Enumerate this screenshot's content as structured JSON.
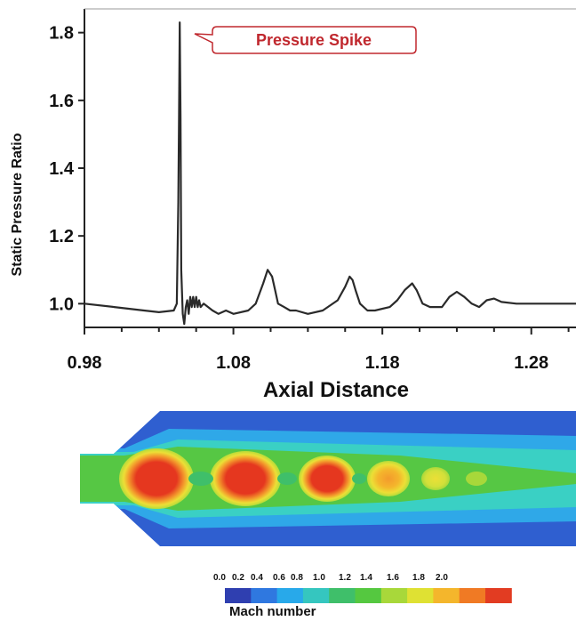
{
  "chart_data": {
    "type": "line",
    "xlabel": "Axial Distance",
    "ylabel": "Static Pressure Ratio",
    "xlim": [
      0.98,
      1.31
    ],
    "ylim": [
      0.93,
      1.87
    ],
    "x_ticks": [
      0.98,
      1.08,
      1.18,
      1.28
    ],
    "y_ticks": [
      1.0,
      1.2,
      1.4,
      1.6,
      1.8
    ],
    "x_tick_labels": [
      "0.98",
      "1.08",
      "1.18",
      "1.28"
    ],
    "y_tick_labels": [
      "1.0",
      "1.2",
      "1.4",
      "1.6",
      "1.8"
    ],
    "grid": false,
    "annotation": {
      "text": "Pressure Spike",
      "x": 1.044,
      "y": 1.83
    },
    "series": [
      {
        "x": [
          0.98,
          1.0,
          1.02,
          1.03,
          1.04,
          1.042,
          1.043,
          1.0435,
          1.044,
          1.0445,
          1.045,
          1.046,
          1.047,
          1.048,
          1.049,
          1.05,
          1.051,
          1.052,
          1.053,
          1.054,
          1.055,
          1.056,
          1.057,
          1.058,
          1.06,
          1.063,
          1.066,
          1.07,
          1.075,
          1.08,
          1.09,
          1.095,
          1.1,
          1.103,
          1.106,
          1.108,
          1.11,
          1.114,
          1.118,
          1.122,
          1.13,
          1.14,
          1.15,
          1.155,
          1.158,
          1.16,
          1.162,
          1.165,
          1.17,
          1.175,
          1.185,
          1.19,
          1.195,
          1.2,
          1.203,
          1.207,
          1.212,
          1.22,
          1.225,
          1.23,
          1.235,
          1.24,
          1.245,
          1.25,
          1.255,
          1.26,
          1.27,
          1.28,
          1.29,
          1.3,
          1.31
        ],
        "y": [
          1.0,
          0.99,
          0.98,
          0.975,
          0.98,
          1.0,
          1.3,
          1.55,
          1.83,
          1.55,
          1.1,
          0.97,
          0.94,
          0.99,
          1.01,
          0.97,
          1.02,
          0.99,
          1.02,
          0.99,
          1.02,
          0.99,
          1.01,
          0.99,
          1.0,
          0.99,
          0.98,
          0.97,
          0.98,
          0.97,
          0.98,
          1.0,
          1.06,
          1.1,
          1.08,
          1.04,
          1.0,
          0.99,
          0.98,
          0.98,
          0.97,
          0.98,
          1.01,
          1.05,
          1.08,
          1.07,
          1.04,
          1.0,
          0.98,
          0.98,
          0.99,
          1.01,
          1.04,
          1.06,
          1.04,
          1.0,
          0.99,
          0.99,
          1.02,
          1.035,
          1.02,
          1.0,
          0.99,
          1.01,
          1.015,
          1.005,
          1.0,
          1.0,
          1.0,
          1.0,
          1.0
        ]
      }
    ]
  },
  "contour": {
    "colorbar_ticks": [
      "0.0",
      "0.2",
      "0.4",
      "0.6",
      "0.8",
      "1.0",
      "1.2",
      "1.4",
      "1.6",
      "1.8",
      "2.0"
    ],
    "colorbar_colors": [
      "#2f3fb0",
      "#2f78e0",
      "#28a9ea",
      "#35c6bf",
      "#3fbf6a",
      "#55c840",
      "#a8d83a",
      "#dfe133",
      "#f4b62c",
      "#f07a24",
      "#e23c22"
    ],
    "colorbar_title": "Mach number",
    "colors": {
      "blue": "#2f5fd0",
      "light_blue": "#2fa8e8",
      "cyan": "#3ad0c4",
      "green": "#56c744",
      "yellow_green": "#b5dc3a",
      "yellow": "#ecdf36",
      "orange": "#f39a2c",
      "red": "#e5371f"
    }
  }
}
